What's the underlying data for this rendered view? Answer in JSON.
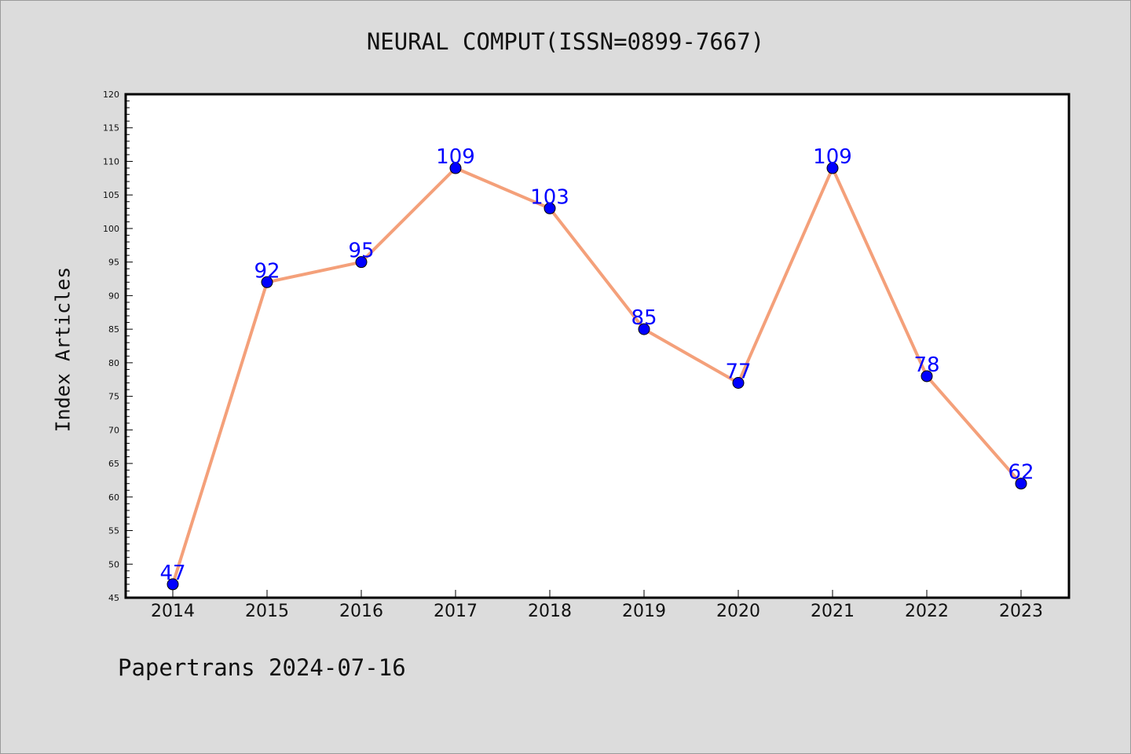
{
  "page": {
    "title": "NEURAL COMPUT(ISSN=0899-7667)",
    "footer": "Papertrans 2024-07-16"
  },
  "chart_data": {
    "type": "line",
    "title": "NEURAL COMPUT(ISSN=0899-7667)",
    "xlabel": "",
    "ylabel": "Index Articles",
    "categories": [
      "2014",
      "2015",
      "2016",
      "2017",
      "2018",
      "2019",
      "2020",
      "2021",
      "2022",
      "2023"
    ],
    "series": [
      {
        "values": [
          47,
          92,
          95,
          109,
          103,
          85,
          77,
          109,
          78,
          62
        ],
        "data_labels": [
          "47",
          "92",
          "95",
          "109",
          "103",
          "85",
          "77",
          "109",
          "78",
          "62"
        ],
        "line_color": "#f4a07a",
        "marker_color": "#0000ff"
      }
    ],
    "ylim": [
      45,
      120
    ],
    "y_major_step": 5,
    "y_ticks": [
      "45",
      "50",
      "55",
      "60",
      "65",
      "70",
      "75",
      "80",
      "85",
      "90",
      "95",
      "100",
      "105",
      "110",
      "115",
      "120"
    ],
    "grid": false,
    "legend": "none",
    "plot_background": "#ffffff",
    "page_background": "#dcdcdc"
  }
}
